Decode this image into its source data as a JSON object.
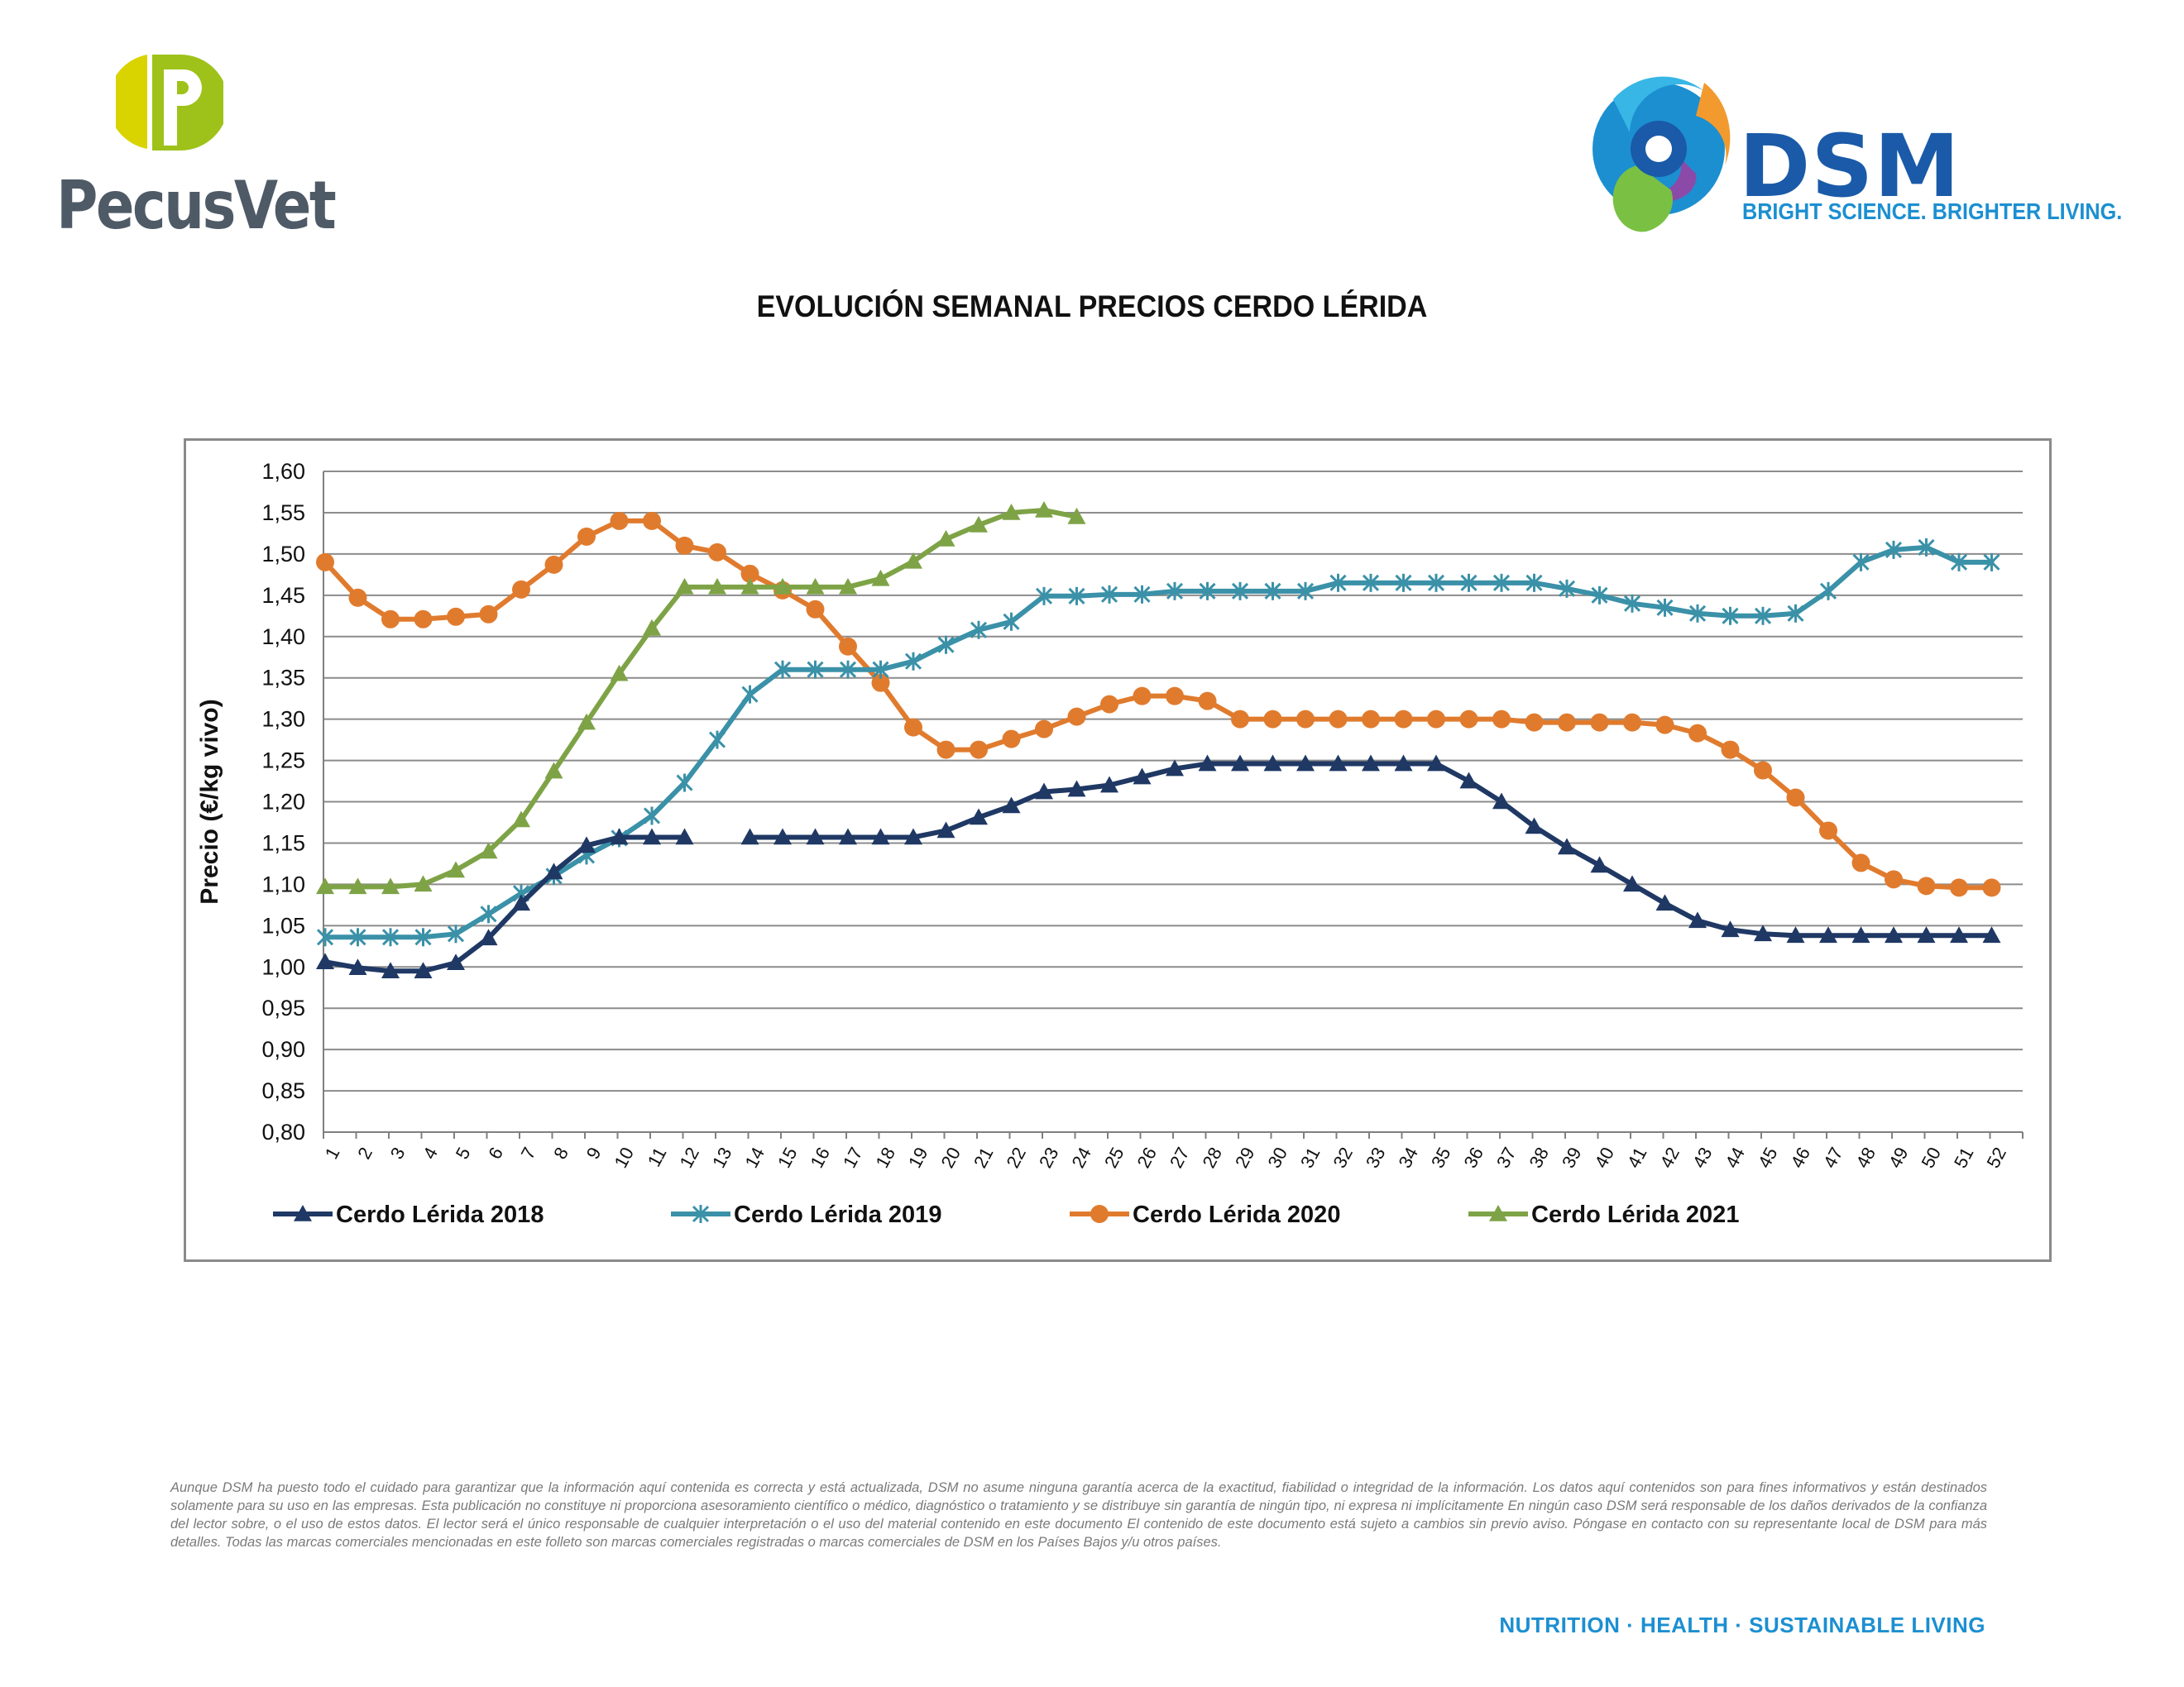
{
  "logos": {
    "pecusvet": {
      "text": "PecusVet",
      "colors": {
        "lime": "#9ec21a",
        "yellow": "#d9d400",
        "grey": "#4f5a67"
      }
    },
    "dsm": {
      "text": "DSM",
      "tagline": "BRIGHT SCIENCE. BRIGHTER LIVING.",
      "colors": {
        "blue": "#1a5aa8",
        "light_blue": "#1c8fd1"
      }
    }
  },
  "page_title": "EVOLUCIÓN SEMANAL PRECIOS CERDO LÉRIDA",
  "chart_data": {
    "type": "line",
    "title": "EVOLUCIÓN SEMANAL PRECIOS CERDO LÉRIDA",
    "xlabel": "",
    "ylabel": "Precio (€/kg vivo)",
    "ylim": [
      0.8,
      1.6
    ],
    "ytick_step": 0.05,
    "ytick_labels": [
      "0,80",
      "0,85",
      "0,90",
      "0,95",
      "1,00",
      "1,05",
      "1,10",
      "1,15",
      "1,20",
      "1,25",
      "1,30",
      "1,35",
      "1,40",
      "1,45",
      "1,50",
      "1,55",
      "1,60"
    ],
    "categories": [
      1,
      2,
      3,
      4,
      5,
      6,
      7,
      8,
      9,
      10,
      11,
      12,
      13,
      14,
      15,
      16,
      17,
      18,
      19,
      20,
      21,
      22,
      23,
      24,
      25,
      26,
      27,
      28,
      29,
      30,
      31,
      32,
      33,
      34,
      35,
      36,
      37,
      38,
      39,
      40,
      41,
      42,
      43,
      44,
      45,
      46,
      47,
      48,
      49,
      50,
      51,
      52
    ],
    "grid": true,
    "legend_position": "bottom",
    "series": [
      {
        "name": "Cerdo Lérida 2018",
        "color": "#1f3864",
        "marker": "triangle",
        "values": [
          1.006,
          0.999,
          0.995,
          0.995,
          1.005,
          1.035,
          1.077,
          1.115,
          1.147,
          1.157,
          1.157,
          1.157,
          null,
          1.157,
          1.157,
          1.157,
          1.157,
          1.157,
          1.157,
          1.165,
          1.181,
          1.195,
          1.212,
          1.215,
          1.22,
          1.23,
          1.24,
          1.246,
          1.246,
          1.246,
          1.246,
          1.246,
          1.246,
          1.246,
          1.246,
          1.225,
          1.2,
          1.17,
          1.145,
          1.123,
          1.1,
          1.077,
          1.056,
          1.045,
          1.04,
          1.038,
          1.038,
          1.038,
          1.038,
          1.038,
          1.038,
          1.038
        ]
      },
      {
        "name": "Cerdo Lérida 2019",
        "color": "#3a91a8",
        "marker": "star",
        "values": [
          1.036,
          1.036,
          1.036,
          1.036,
          1.04,
          1.064,
          1.089,
          1.11,
          1.135,
          1.156,
          1.183,
          1.223,
          1.275,
          1.33,
          1.36,
          1.36,
          1.36,
          1.36,
          1.37,
          1.39,
          1.408,
          1.418,
          1.449,
          1.449,
          1.451,
          1.451,
          1.455,
          1.455,
          1.455,
          1.455,
          1.455,
          1.465,
          1.465,
          1.465,
          1.465,
          1.465,
          1.465,
          1.465,
          1.458,
          1.45,
          1.44,
          1.435,
          1.428,
          1.425,
          1.425,
          1.428,
          1.455,
          1.49,
          1.505,
          1.508,
          1.49,
          1.49
        ]
      },
      {
        "name": "Cerdo Lérida 2020",
        "color": "#e07b2e",
        "marker": "circle",
        "values": [
          1.49,
          1.447,
          1.421,
          1.421,
          1.424,
          1.427,
          1.457,
          1.487,
          1.521,
          1.54,
          1.54,
          1.51,
          1.502,
          1.476,
          1.456,
          1.433,
          1.388,
          1.344,
          1.29,
          1.263,
          1.263,
          1.276,
          1.288,
          1.303,
          1.318,
          1.328,
          1.328,
          1.322,
          1.3,
          1.3,
          1.3,
          1.3,
          1.3,
          1.3,
          1.3,
          1.3,
          1.3,
          1.296,
          1.296,
          1.296,
          1.296,
          1.293,
          1.283,
          1.263,
          1.238,
          1.205,
          1.165,
          1.126,
          1.106,
          1.098,
          1.096,
          1.096
        ]
      },
      {
        "name": "Cerdo Lérida 2021",
        "color": "#7ea346",
        "marker": "triangle",
        "values": [
          1.097,
          1.097,
          1.097,
          1.1,
          1.117,
          1.14,
          1.178,
          1.237,
          1.296,
          1.355,
          1.41,
          1.46,
          1.46,
          1.46,
          1.46,
          1.46,
          1.46,
          1.47,
          1.491,
          1.518,
          1.535,
          1.55,
          1.553,
          1.545,
          null,
          null,
          null,
          null,
          null,
          null,
          null,
          null,
          null,
          null,
          null,
          null,
          null,
          null,
          null,
          null,
          null,
          null,
          null,
          null,
          null,
          null,
          null,
          null,
          null,
          null,
          null,
          null
        ]
      }
    ]
  },
  "disclaimer": "Aunque DSM ha puesto todo el cuidado para garantizar que la información aquí contenida es correcta y está actualizada, DSM no asume ninguna garantía acerca de la exactitud, fiabilidad o integridad de la información. Los datos aquí contenidos son para fines informativos y están destinados solamente para su uso en las empresas. Esta publicación no constituye ni proporciona asesoramiento científico o médico, diagnóstico o tratamiento y se distribuye sin garantía de ningún tipo, ni expresa ni implícitamente En ningún caso DSM será responsable de los daños derivados de la confianza del lector sobre, o el uso de estos datos. El lector será el único responsable de cualquier interpretación o el uso del material contenido en este documento El contenido de este documento está sujeto a cambios sin previo aviso. Póngase en contacto con su representante local de DSM para más detalles. Todas las marcas comerciales mencionadas en este folleto son marcas comerciales registradas o marcas comerciales de DSM en los Países Bajos y/u otros países.",
  "footer_tagline": "NUTRITION · HEALTH · SUSTAINABLE LIVING"
}
